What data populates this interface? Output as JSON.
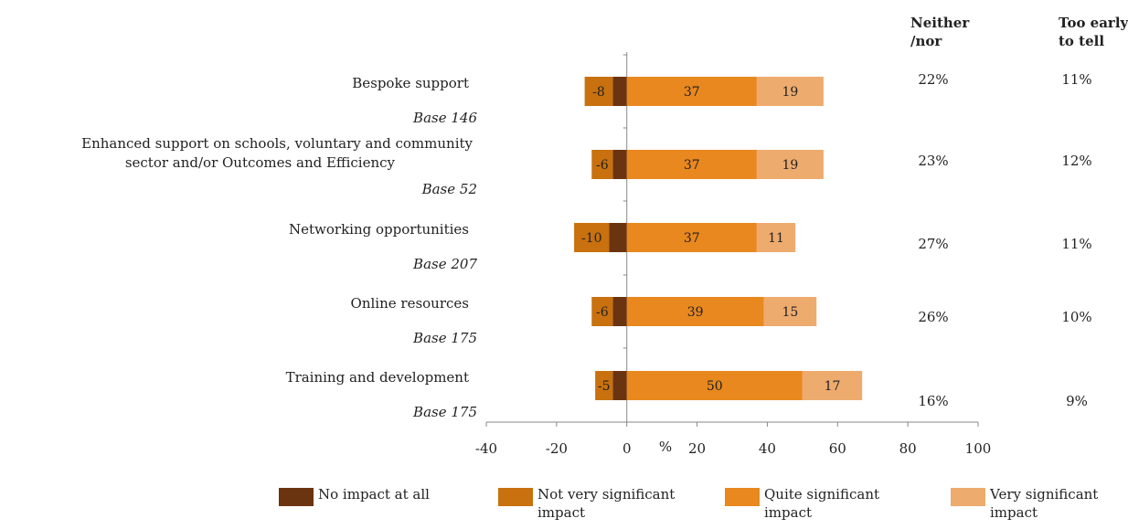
{
  "chart_data": {
    "type": "bar",
    "orientation": "horizontal",
    "stacked": "diverging",
    "xlabel": "%",
    "xlim": [
      -40,
      100
    ],
    "xticks": [
      -40,
      -20,
      0,
      20,
      40,
      60,
      80,
      100
    ],
    "grid": false,
    "legend_position": "bottom",
    "categories": [
      {
        "label_lines": [
          "Bespoke support"
        ],
        "base": "Base 146"
      },
      {
        "label_lines": [
          "Enhanced support on schools, voluntary and community",
          "sector and/or Outcomes and Efficiency"
        ],
        "base": "Base 52"
      },
      {
        "label_lines": [
          "Networking opportunities"
        ],
        "base": "Base 207"
      },
      {
        "label_lines": [
          "Online resources"
        ],
        "base": "Base 175"
      },
      {
        "label_lines": [
          "Training and development"
        ],
        "base": "Base 175"
      }
    ],
    "series": [
      {
        "name_lines": [
          "No impact at all"
        ],
        "color": "#6b3410",
        "values": [
          -4,
          -4,
          -5,
          -4,
          -4
        ]
      },
      {
        "name_lines": [
          "Not very significant",
          "impact"
        ],
        "color": "#c8710e",
        "values": [
          -8,
          -6,
          -10,
          -6,
          -5
        ]
      },
      {
        "name_lines": [
          "Quite significant",
          "impact"
        ],
        "color": "#e8881f",
        "values": [
          37,
          37,
          37,
          39,
          50
        ]
      },
      {
        "name_lines": [
          "Very significant",
          "impact"
        ],
        "color": "#eeab6e",
        "values": [
          19,
          19,
          11,
          15,
          17
        ]
      }
    ],
    "extra_columns": [
      {
        "header_lines": [
          "Neither",
          "/nor"
        ],
        "values": [
          "22%",
          "23%",
          "27%",
          "26%",
          "16%"
        ]
      },
      {
        "header_lines": [
          "Too early",
          "to tell"
        ],
        "values": [
          "11%",
          "12%",
          "11%",
          "10%",
          "9%"
        ]
      }
    ]
  }
}
